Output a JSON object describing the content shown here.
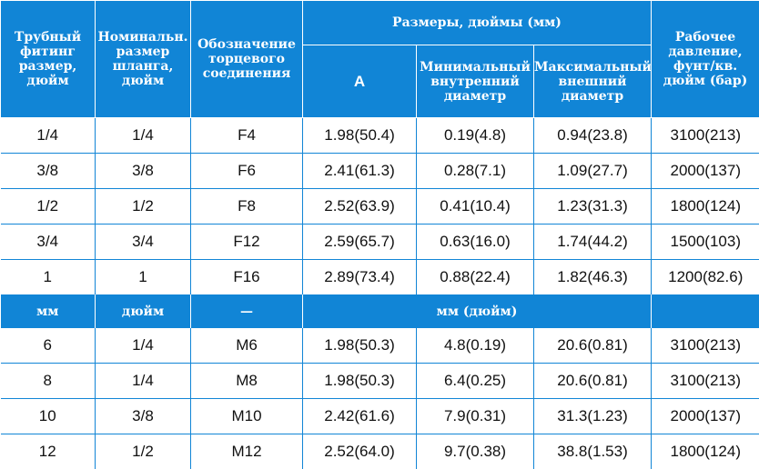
{
  "header": {
    "col1": "Трубный фитинг размер, дюйм",
    "col2": "Номинальн. размер шланга, дюйм",
    "col3": "Обозначение торцевого соединения",
    "dims_group": "Размеры, дюймы (мм)",
    "dim_a": "A",
    "dim_min_id": "Минимальный внутренний диаметр",
    "dim_max_od": "Максимальный внешний диаметр",
    "pressure": "Рабочее давление, фунт/кв. дюйм (бар)"
  },
  "inch_rows": [
    [
      "1/4",
      "1/4",
      "F4",
      "1.98(50.4)",
      "0.19(4.8)",
      "0.94(23.8)",
      "3100(213)"
    ],
    [
      "3/8",
      "3/8",
      "F6",
      "2.41(61.3)",
      "0.28(7.1)",
      "1.09(27.7)",
      "2000(137)"
    ],
    [
      "1/2",
      "1/2",
      "F8",
      "2.52(63.9)",
      "0.41(10.4)",
      "1.23(31.3)",
      "1800(124)"
    ],
    [
      "3/4",
      "3/4",
      "F12",
      "2.59(65.7)",
      "0.63(16.0)",
      "1.74(44.2)",
      "1500(103)"
    ],
    [
      "1",
      "1",
      "F16",
      "2.89(73.4)",
      "0.88(22.4)",
      "1.82(46.3)",
      "1200(82.6)"
    ]
  ],
  "unit_row": {
    "col1": "мм",
    "col2": "дюйм",
    "col3": "—",
    "dims": "мм (дюйм)",
    "pressure": ""
  },
  "metric_rows": [
    [
      "6",
      "1/4",
      "M6",
      "1.98(50.3)",
      "4.8(0.19)",
      "20.6(0.81)",
      "3100(213)"
    ],
    [
      "8",
      "1/4",
      "M8",
      "1.98(50.3)",
      "6.4(0.25)",
      "20.6(0.81)",
      "3100(213)"
    ],
    [
      "10",
      "3/8",
      "M10",
      "2.42(61.6)",
      "7.9(0.31)",
      "31.3(1.23)",
      "2000(137)"
    ],
    [
      "12",
      "1/2",
      "M12",
      "2.52(64.0)",
      "9.7(0.38)",
      "38.8(1.53)",
      "1800(124)"
    ]
  ],
  "colors": {
    "accent": "#1185d6",
    "header_text": "#ffffff",
    "body_text": "#111111"
  }
}
